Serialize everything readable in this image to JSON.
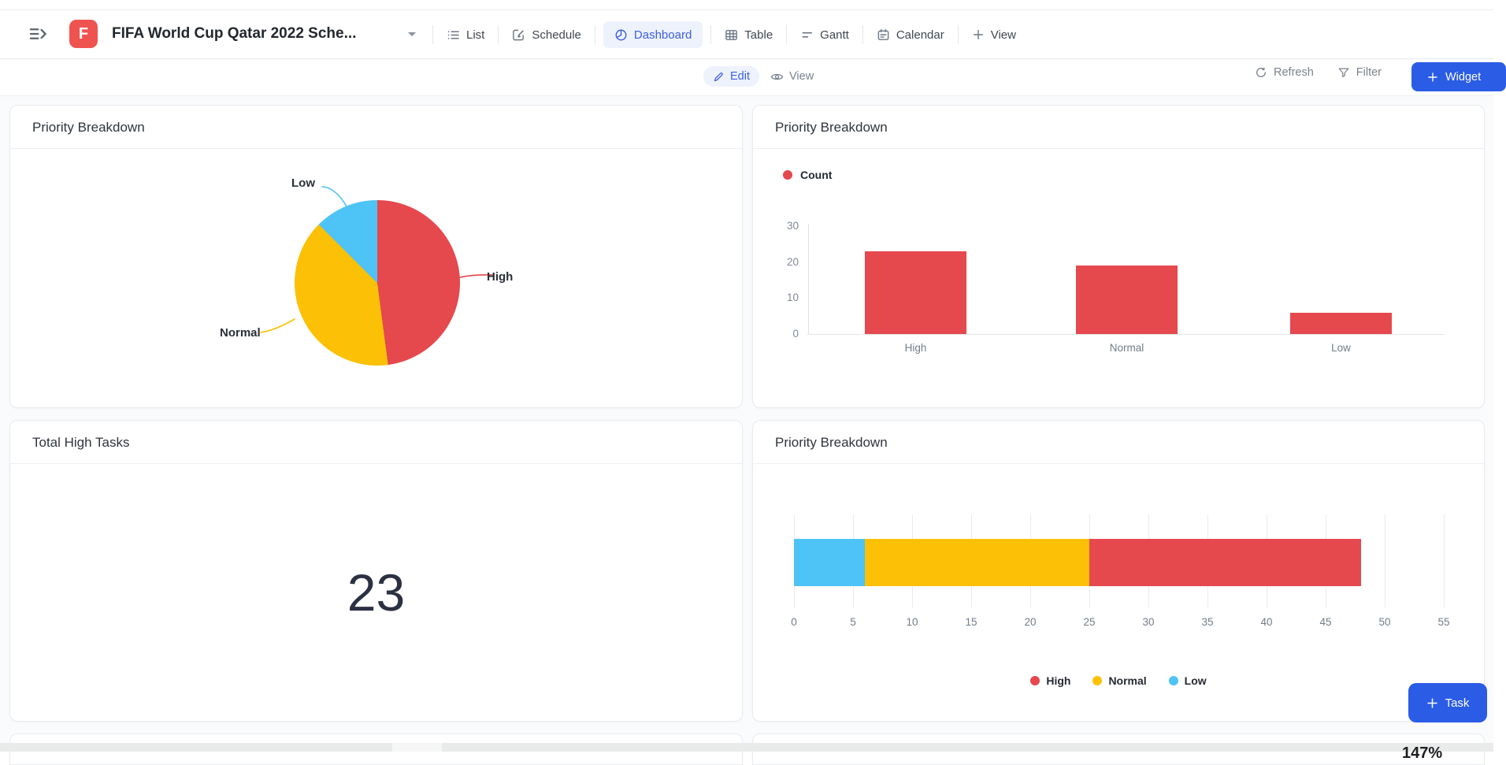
{
  "header": {
    "title": "FIFA World Cup Qatar 2022 Sche...",
    "logo_letter": "F",
    "logo_color": "#ef5350",
    "tabs": [
      {
        "label": "List",
        "active": false
      },
      {
        "label": "Schedule",
        "active": false
      },
      {
        "label": "Dashboard",
        "active": true
      },
      {
        "label": "Table",
        "active": false
      },
      {
        "label": "Gantt",
        "active": false
      },
      {
        "label": "Calendar",
        "active": false
      },
      {
        "label": "View",
        "active": false
      }
    ]
  },
  "toolbar": {
    "edit_label": "Edit",
    "view_label": "View",
    "refresh_label": "Refresh",
    "filter_label": "Filter",
    "widget_label": "Widget"
  },
  "colors": {
    "high": "#e5484d",
    "normal": "#fcc006",
    "low": "#4ec3f5",
    "accent_blue": "#2b5ce6",
    "active_tab_blue": "#3e5fe0"
  },
  "chart_data": [
    {
      "type": "pie",
      "title": "Priority Breakdown",
      "labels": [
        "High",
        "Normal",
        "Low"
      ],
      "values": [
        23,
        19,
        6
      ],
      "colors": [
        "#e5484d",
        "#fcc006",
        "#4ec3f5"
      ],
      "legend_position": "callout-labels"
    },
    {
      "type": "bar",
      "title": "Priority Breakdown",
      "legend": [
        "Count"
      ],
      "categories": [
        "High",
        "Normal",
        "Low"
      ],
      "values": [
        23,
        19,
        6
      ],
      "bar_color": "#e5484d",
      "ylim": [
        0,
        30
      ],
      "yticks": [
        30,
        20,
        10,
        0
      ]
    },
    {
      "type": "stat",
      "title": "Total High Tasks",
      "value": "23"
    },
    {
      "type": "bar-horizontal-stacked",
      "title": "Priority Breakdown",
      "series": [
        {
          "name": "Low",
          "value": 6,
          "color": "#4ec3f5"
        },
        {
          "name": "Normal",
          "value": 19,
          "color": "#fcc006"
        },
        {
          "name": "High",
          "value": 23,
          "color": "#e5484d"
        }
      ],
      "xlim": [
        0,
        55
      ],
      "xticks": [
        0,
        5,
        10,
        15,
        20,
        25,
        30,
        35,
        40,
        45,
        50,
        55
      ],
      "legend": [
        "High",
        "Normal",
        "Low"
      ],
      "legend_position": "bottom-center"
    }
  ],
  "floating": {
    "task_label": "Task"
  },
  "bottom": {
    "clipped_text": "147%"
  }
}
